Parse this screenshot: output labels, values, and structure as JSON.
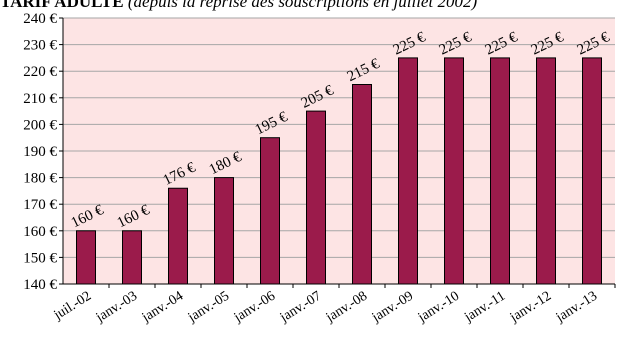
{
  "chart_data": {
    "type": "bar",
    "title": "TARIF ADULTE",
    "subtitle": "(depuis la reprise des souscriptions en juillet 2002)",
    "categories": [
      "juil.-02",
      "janv.-03",
      "janv.-04",
      "janv.-05",
      "janv.-06",
      "janv.-07",
      "janv.-08",
      "janv.-09",
      "janv.-10",
      "janv.-11",
      "janv.-12",
      "janv.-13"
    ],
    "values": [
      160,
      160,
      176,
      180,
      195,
      205,
      215,
      225,
      225,
      225,
      225,
      225
    ],
    "data_labels": [
      "160 €",
      "160 €",
      "176 €",
      "180 €",
      "195 €",
      "205 €",
      "215 €",
      "225 €",
      "225 €",
      "225 €",
      "225 €",
      "225 €"
    ],
    "ylim": [
      140,
      240
    ],
    "yticks": [
      140,
      150,
      160,
      170,
      180,
      190,
      200,
      210,
      220,
      230,
      240
    ],
    "ytick_labels": [
      "140 €",
      "150 €",
      "160 €",
      "170 €",
      "180 €",
      "190 €",
      "200 €",
      "210 €",
      "220 €",
      "230 €",
      "240 €"
    ],
    "xlabel": "",
    "ylabel": "",
    "grid": true,
    "legend": "none",
    "colors": {
      "bar_fill": "#9B1B4B",
      "bar_stroke": "#000000",
      "plot_background": "#FDE4E4",
      "gridline": "#A6A6A6"
    }
  }
}
